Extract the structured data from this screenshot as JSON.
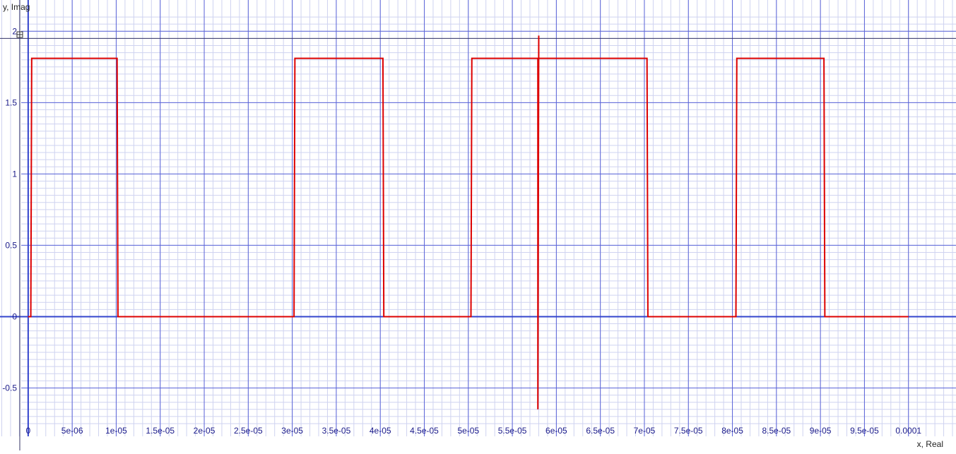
{
  "chart_data": {
    "type": "line",
    "xlabel": "x, Real",
    "ylabel": "y, Imag",
    "xlim": [
      -3.2e-06,
      0.0001054
    ],
    "ylim": [
      -0.75,
      2.13
    ],
    "grid": true,
    "x_ticks": [
      0,
      5e-06,
      1e-05,
      1.5e-05,
      2e-05,
      2.5e-05,
      3e-05,
      3.5e-05,
      4e-05,
      4.5e-05,
      5e-05,
      5.5e-05,
      6e-05,
      6.5e-05,
      7e-05,
      7.5e-05,
      8e-05,
      8.5e-05,
      9e-05,
      9.5e-05,
      0.0001
    ],
    "x_tick_labels": [
      "0",
      "5e-06",
      "1e-05",
      "1.5e-05",
      "2e-05",
      "2.5e-05",
      "3e-05",
      "3.5e-05",
      "4e-05",
      "4.5e-05",
      "5e-05",
      "5.5e-05",
      "6e-05",
      "6.5e-05",
      "7e-05",
      "7.5e-05",
      "8e-05",
      "8.5e-05",
      "9e-05",
      "9.5e-05",
      "0.0001"
    ],
    "y_ticks": [
      -0.5,
      0,
      0.5,
      1,
      1.5,
      2
    ],
    "y_tick_labels": [
      "-0.5",
      "0",
      "0.5",
      "1",
      "1.5",
      "2"
    ],
    "series": [
      {
        "color": "#dd0000",
        "x": [
          0,
          3e-07,
          4e-07,
          1.01e-05,
          1.02e-05,
          3.02e-05,
          3.03e-05,
          4.03e-05,
          4.04e-05,
          5.03e-05,
          5.04e-05,
          5.79e-05,
          5.79e-05,
          5.8e-05,
          5.8e-05,
          7.03e-05,
          7.04e-05,
          8.04e-05,
          8.05e-05,
          9.04e-05,
          9.05e-05,
          0.0001
        ],
        "y": [
          0,
          0,
          1.81,
          1.81,
          0,
          0,
          1.81,
          1.81,
          0,
          0,
          1.81,
          1.81,
          -0.65,
          1.97,
          1.81,
          1.81,
          0,
          0,
          1.81,
          1.81,
          0,
          0
        ]
      }
    ]
  }
}
